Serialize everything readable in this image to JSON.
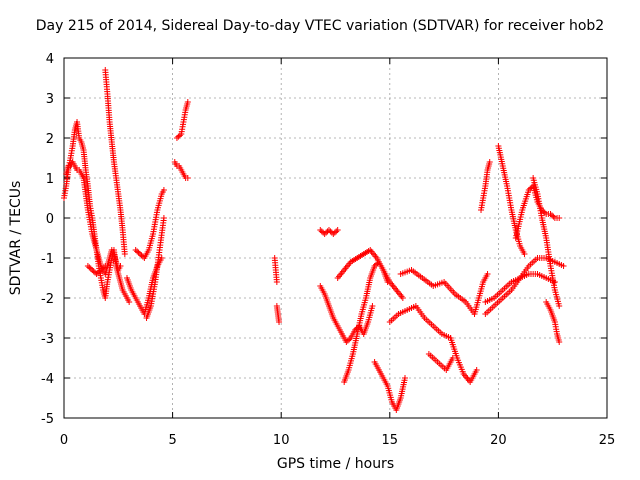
{
  "chart_data": {
    "type": "scatter",
    "title": "Day 215 of 2014, Sidereal Day-to-day VTEC variation (SDTVAR) for receiver hob2",
    "xlabel": "GPS time / hours",
    "ylabel": "SDTVAR / TECUs",
    "xlim": [
      0,
      25
    ],
    "ylim": [
      -5,
      4
    ],
    "xticks": [
      "0",
      "5",
      "10",
      "15",
      "20",
      "25"
    ],
    "yticks": [
      "-5",
      "-4",
      "-3",
      "-2",
      "-1",
      "0",
      "1",
      "2",
      "3",
      "4"
    ],
    "grid": true,
    "marker": "+",
    "color": "#ff0000",
    "series": [
      {
        "name": "trace1",
        "x": [
          0.0,
          0.1,
          0.2,
          0.3,
          0.4,
          0.5,
          0.6,
          0.7,
          0.8,
          0.9,
          1.0,
          1.1,
          1.2,
          1.3,
          1.4,
          1.5,
          1.6,
          1.7,
          1.8,
          1.9,
          2.0,
          2.1,
          2.2,
          2.3,
          2.4,
          2.5,
          2.6,
          2.7,
          2.8,
          2.9,
          3.0
        ],
        "y": [
          0.5,
          0.8,
          1.2,
          1.5,
          1.8,
          2.2,
          2.4,
          2.0,
          1.9,
          1.7,
          1.2,
          0.8,
          0.3,
          0.0,
          -0.4,
          -0.8,
          -1.2,
          -1.5,
          -1.8,
          -2.0,
          -1.6,
          -1.3,
          -1.0,
          -0.8,
          -1.2,
          -1.4,
          -1.6,
          -1.8,
          -1.9,
          -2.0,
          -2.1
        ]
      },
      {
        "name": "trace2",
        "x": [
          0.1,
          0.2,
          0.3,
          0.4,
          0.5,
          0.6,
          0.7,
          0.8,
          0.9,
          1.0,
          1.1,
          1.2,
          1.3,
          1.4,
          1.5,
          1.6,
          1.7,
          1.8,
          1.9,
          2.0,
          2.1,
          2.2,
          2.3,
          2.4,
          2.5,
          2.6
        ],
        "y": [
          1.1,
          1.3,
          1.3,
          1.4,
          1.3,
          1.2,
          1.2,
          1.1,
          1.0,
          0.6,
          0.2,
          -0.1,
          -0.4,
          -0.6,
          -0.8,
          -1.0,
          -1.2,
          -1.3,
          -1.4,
          -1.2,
          -1.0,
          -0.8,
          -0.9,
          -1.1,
          -1.3,
          -1.2
        ]
      },
      {
        "name": "trace3",
        "x": [
          1.9,
          2.0,
          2.1,
          2.2,
          2.3,
          2.4,
          2.5,
          2.6,
          2.7,
          2.8
        ],
        "y": [
          3.7,
          3.1,
          2.4,
          1.9,
          1.4,
          1.0,
          0.6,
          0.2,
          -0.3,
          -0.9
        ]
      },
      {
        "name": "trace4",
        "x": [
          1.1,
          1.3,
          1.5,
          1.7,
          1.9
        ],
        "y": [
          -1.2,
          -1.3,
          -1.4,
          -1.3,
          -1.2
        ]
      },
      {
        "name": "trace5",
        "x": [
          2.9,
          3.1,
          3.3,
          3.5,
          3.7,
          3.9,
          4.1,
          4.3,
          4.5
        ],
        "y": [
          -1.5,
          -1.8,
          -2.0,
          -2.2,
          -2.4,
          -2.0,
          -1.5,
          -1.2,
          -1.0
        ]
      },
      {
        "name": "trace6",
        "x": [
          3.3,
          3.5,
          3.7,
          3.9,
          4.1,
          4.3,
          4.5,
          4.6
        ],
        "y": [
          -0.8,
          -0.9,
          -1.0,
          -0.8,
          -0.4,
          0.2,
          0.6,
          0.7
        ]
      },
      {
        "name": "trace7",
        "x": [
          3.8,
          4.0,
          4.2,
          4.4,
          4.6
        ],
        "y": [
          -2.5,
          -2.2,
          -1.6,
          -0.8,
          0.0
        ]
      },
      {
        "name": "trace8",
        "x": [
          5.1,
          5.2,
          5.3,
          5.4,
          5.5,
          5.6,
          5.7
        ],
        "y": [
          1.4,
          1.3,
          1.3,
          1.2,
          1.1,
          1.0,
          1.0
        ]
      },
      {
        "name": "trace9",
        "x": [
          5.2,
          5.4,
          5.5,
          5.6,
          5.7
        ],
        "y": [
          2.0,
          2.1,
          2.4,
          2.7,
          2.9
        ]
      },
      {
        "name": "trace10",
        "x": [
          9.7,
          9.8
        ],
        "y": [
          -1.0,
          -1.6
        ]
      },
      {
        "name": "trace11",
        "x": [
          9.8,
          9.85,
          9.9
        ],
        "y": [
          -2.2,
          -2.4,
          -2.6
        ]
      },
      {
        "name": "trace12",
        "x": [
          11.8,
          12.0,
          12.2,
          12.4,
          12.6
        ],
        "y": [
          -0.3,
          -0.4,
          -0.3,
          -0.4,
          -0.3
        ]
      },
      {
        "name": "trace13",
        "x": [
          11.8,
          12.0,
          12.2,
          12.4,
          12.6,
          12.8,
          13.0,
          13.2,
          13.4,
          13.6,
          13.8,
          14.0,
          14.2
        ],
        "y": [
          -1.7,
          -1.9,
          -2.2,
          -2.5,
          -2.7,
          -2.9,
          -3.1,
          -3.0,
          -2.8,
          -2.7,
          -2.9,
          -2.6,
          -2.2
        ]
      },
      {
        "name": "trace14",
        "x": [
          12.9,
          13.1,
          13.3,
          13.5,
          13.7,
          13.9,
          14.1,
          14.3,
          14.5,
          14.7,
          14.9
        ],
        "y": [
          -4.1,
          -3.8,
          -3.4,
          -2.9,
          -2.4,
          -2.0,
          -1.5,
          -1.2,
          -1.1,
          -1.3,
          -1.6
        ]
      },
      {
        "name": "trace15",
        "x": [
          12.6,
          12.9,
          13.2,
          13.5,
          13.8,
          14.1,
          14.4,
          14.7,
          15.0,
          15.3,
          15.6
        ],
        "y": [
          -1.5,
          -1.3,
          -1.1,
          -1.0,
          -0.9,
          -0.8,
          -1.0,
          -1.3,
          -1.6,
          -1.8,
          -2.0
        ]
      },
      {
        "name": "trace16",
        "x": [
          14.3,
          14.6,
          14.9,
          15.1,
          15.3,
          15.5,
          15.7
        ],
        "y": [
          -3.6,
          -3.9,
          -4.2,
          -4.6,
          -4.8,
          -4.5,
          -4.0
        ]
      },
      {
        "name": "trace17",
        "x": [
          15.0,
          15.4,
          15.8,
          16.2,
          16.6,
          17.0,
          17.4,
          17.8
        ],
        "y": [
          -2.6,
          -2.4,
          -2.3,
          -2.2,
          -2.5,
          -2.7,
          -2.9,
          -3.0
        ]
      },
      {
        "name": "trace18",
        "x": [
          15.5,
          16.0,
          16.5,
          17.0,
          17.5,
          18.0,
          18.5,
          18.9
        ],
        "y": [
          -1.4,
          -1.3,
          -1.5,
          -1.7,
          -1.6,
          -1.9,
          -2.1,
          -2.4
        ]
      },
      {
        "name": "trace19",
        "x": [
          16.8,
          17.2,
          17.6,
          17.9
        ],
        "y": [
          -3.4,
          -3.6,
          -3.8,
          -3.5
        ]
      },
      {
        "name": "trace20",
        "x": [
          17.8,
          18.1,
          18.4,
          18.7,
          19.0
        ],
        "y": [
          -3.0,
          -3.5,
          -3.9,
          -4.1,
          -3.8
        ]
      },
      {
        "name": "trace21",
        "x": [
          18.9,
          19.1,
          19.3,
          19.5
        ],
        "y": [
          -2.4,
          -2.0,
          -1.6,
          -1.4
        ]
      },
      {
        "name": "trace22",
        "x": [
          19.2,
          19.4,
          19.5,
          19.6
        ],
        "y": [
          0.2,
          0.8,
          1.2,
          1.4
        ]
      },
      {
        "name": "trace23",
        "x": [
          19.4,
          19.8,
          20.2,
          20.6,
          21.0,
          21.4,
          21.8,
          22.2,
          22.6,
          23.0
        ],
        "y": [
          -2.4,
          -2.2,
          -2.0,
          -1.8,
          -1.5,
          -1.2,
          -1.0,
          -1.0,
          -1.1,
          -1.2
        ]
      },
      {
        "name": "trace24",
        "x": [
          19.4,
          19.8,
          20.2,
          20.6,
          21.0,
          21.4,
          21.8,
          22.2,
          22.6
        ],
        "y": [
          -2.1,
          -2.0,
          -1.8,
          -1.6,
          -1.5,
          -1.4,
          -1.4,
          -1.5,
          -1.6
        ]
      },
      {
        "name": "trace25",
        "x": [
          20.0,
          20.2,
          20.4,
          20.6,
          20.8,
          21.0,
          21.2
        ],
        "y": [
          1.8,
          1.3,
          0.8,
          0.2,
          -0.3,
          -0.7,
          -0.9
        ]
      },
      {
        "name": "trace26",
        "x": [
          20.8,
          21.1,
          21.4,
          21.6,
          21.8,
          22.0,
          22.2,
          22.4,
          22.6,
          22.8
        ],
        "y": [
          -0.5,
          0.2,
          0.7,
          0.8,
          0.4,
          0.2,
          0.1,
          0.1,
          0.0,
          0.0
        ]
      },
      {
        "name": "trace27",
        "x": [
          21.6,
          21.8,
          22.0,
          22.2,
          22.4,
          22.6,
          22.8
        ],
        "y": [
          1.0,
          0.6,
          0.0,
          -0.5,
          -1.2,
          -1.8,
          -2.2
        ]
      },
      {
        "name": "trace28",
        "x": [
          22.2,
          22.4,
          22.6,
          22.7,
          22.8
        ],
        "y": [
          -2.1,
          -2.3,
          -2.6,
          -2.9,
          -3.1
        ]
      }
    ]
  }
}
